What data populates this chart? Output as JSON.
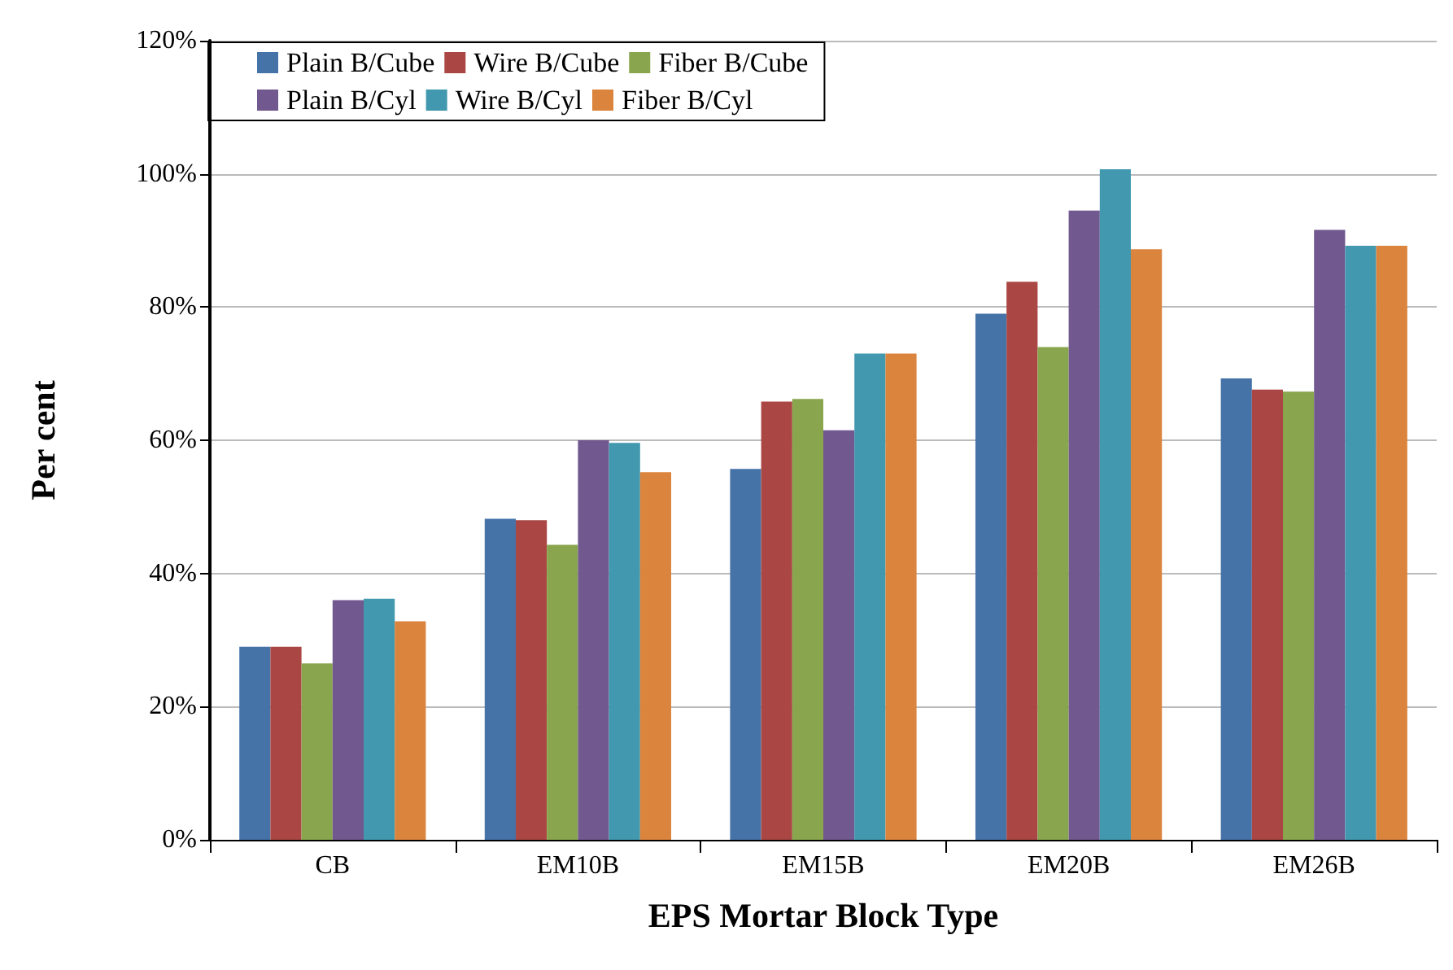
{
  "chart_data": {
    "type": "bar",
    "xlabel": "EPS Mortar Block Type",
    "ylabel": "Per cent",
    "categories": [
      "CB",
      "EM10B",
      "EM15B",
      "EM20B",
      "EM26B"
    ],
    "series": [
      {
        "name": "Plain B/Cube",
        "color": "#4572a7",
        "values": [
          29,
          48.2,
          55.7,
          79,
          69.3
        ]
      },
      {
        "name": "Wire B/Cube",
        "color": "#aa4643",
        "values": [
          29,
          48,
          65.8,
          83.8,
          67.6
        ]
      },
      {
        "name": "Fiber B/Cube",
        "color": "#89a54e",
        "values": [
          26.5,
          44.3,
          66.2,
          74,
          67.3
        ]
      },
      {
        "name": "Plain B/Cyl",
        "color": "#71588f",
        "values": [
          36,
          60,
          61.5,
          94.5,
          91.6
        ]
      },
      {
        "name": "Wire B/Cyl",
        "color": "#4198af",
        "values": [
          36.2,
          59.6,
          73,
          100.7,
          89.2
        ]
      },
      {
        "name": "Fiber B/Cyl",
        "color": "#db843d",
        "values": [
          32.8,
          55.2,
          73,
          88.7,
          89.2
        ]
      }
    ],
    "ylim": [
      0,
      120
    ],
    "yticks": [
      {
        "value": 0,
        "label": "0%"
      },
      {
        "value": 20,
        "label": "20%"
      },
      {
        "value": 40,
        "label": "40%"
      },
      {
        "value": 60,
        "label": "60%"
      },
      {
        "value": 80,
        "label": "80%"
      },
      {
        "value": 100,
        "label": "100%"
      },
      {
        "value": 120,
        "label": "120%"
      }
    ],
    "grid": "y",
    "legend": "top left"
  }
}
